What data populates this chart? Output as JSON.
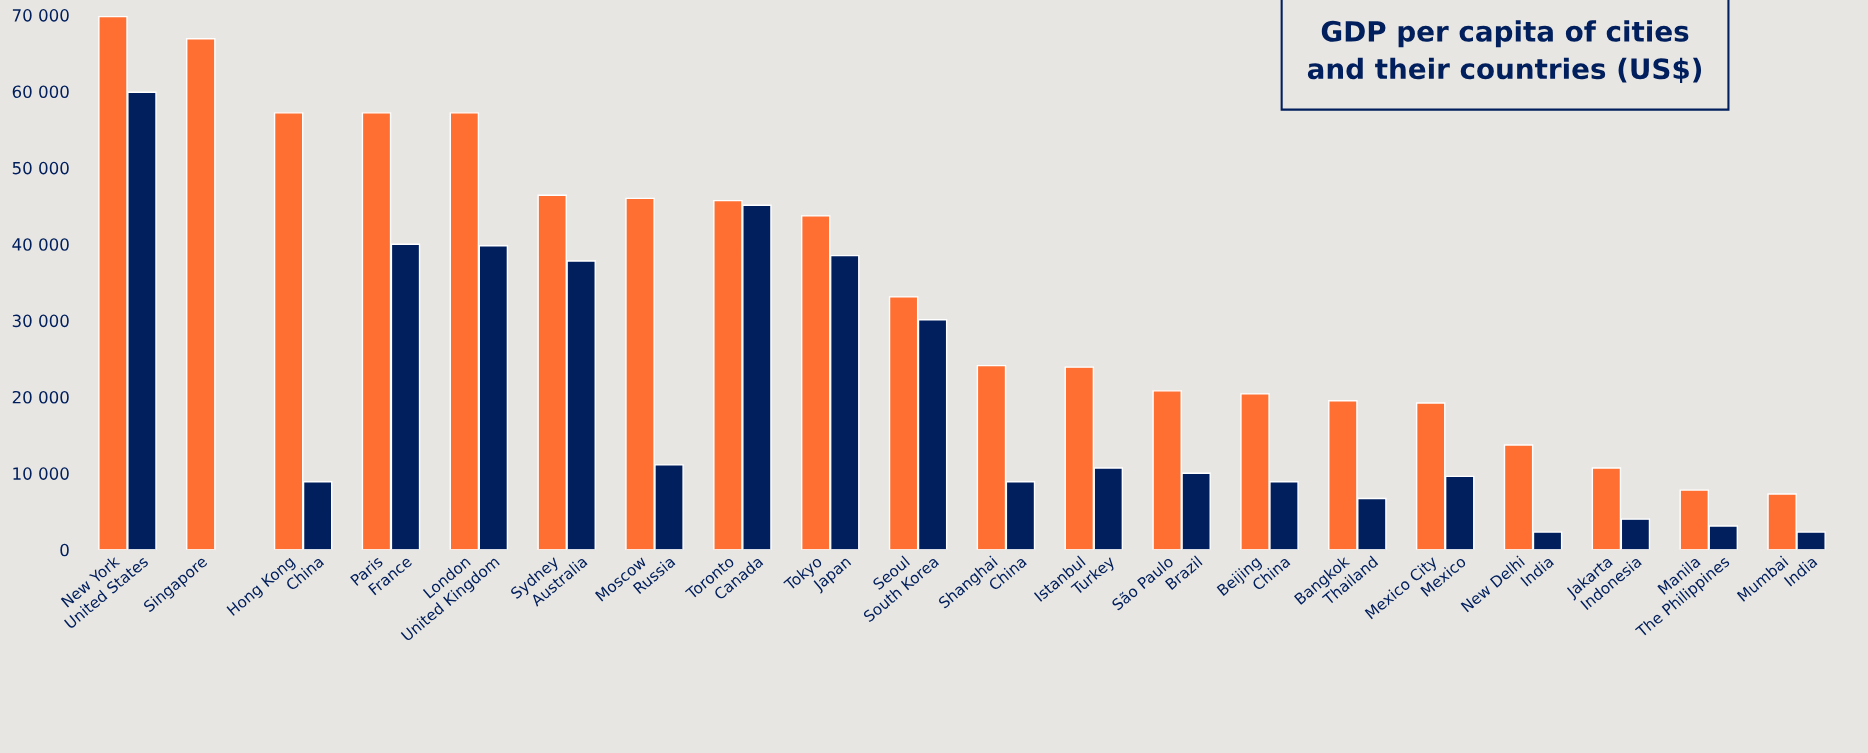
{
  "chart_data": {
    "type": "bar",
    "title": "GDP per capita of cities\nand their countries (US$)",
    "categories": [
      "New York",
      "United States",
      "Singapore",
      null,
      "Hong Kong",
      "China",
      "Paris",
      "France",
      "London",
      "United Kingdom",
      "Sydney",
      "Australia",
      "Moscow",
      "Russia",
      "Toronto",
      "Canada",
      "Tokyo",
      "Japan",
      "Seoul",
      "South Korea",
      "Shanghai",
      "China",
      "Istanbul",
      "Turkey",
      "São Paulo",
      "Brazil",
      "Beijing",
      "China",
      "Bangkok",
      "Thailand",
      "Mexico City",
      "Mexico",
      "New Delhi",
      "India",
      "Jakarta",
      "Indonesia",
      "Manila",
      "The Philippines",
      "Mumbai",
      "India"
    ],
    "series": [
      {
        "color": "#ff6f31",
        "values": [
          69800,
          null,
          66900,
          null,
          57200,
          null,
          57200,
          null,
          57200,
          null,
          46400,
          null,
          46000,
          null,
          45700,
          null,
          43700,
          null,
          33100,
          null,
          24100,
          null,
          23900,
          null,
          20800,
          null,
          20400,
          null,
          19500,
          null,
          19200,
          null,
          13700,
          null,
          10700,
          null,
          7800,
          null,
          7300,
          null
        ]
      },
      {
        "color": "#001f5c",
        "values": [
          null,
          59900,
          null,
          null,
          null,
          8900,
          null,
          40000,
          null,
          39800,
          null,
          37800,
          null,
          11100,
          null,
          45100,
          null,
          38500,
          null,
          30100,
          null,
          8900,
          null,
          10700,
          null,
          10000,
          null,
          8900,
          null,
          6700,
          null,
          9600,
          null,
          2300,
          null,
          4000,
          null,
          3100,
          null,
          2300
        ]
      }
    ],
    "ylim": [
      0,
      70000
    ],
    "yticks": [
      {
        "value": 0,
        "label": "0"
      },
      {
        "value": 10000,
        "label": "10 000"
      },
      {
        "value": 20000,
        "label": "20 000"
      },
      {
        "value": 30000,
        "label": "30 000"
      },
      {
        "value": 40000,
        "label": "40 000"
      },
      {
        "value": 50000,
        "label": "50 000"
      },
      {
        "value": 60000,
        "label": "60 000"
      },
      {
        "value": 70000,
        "label": "70 000"
      }
    ],
    "grid": false,
    "legend": false
  }
}
